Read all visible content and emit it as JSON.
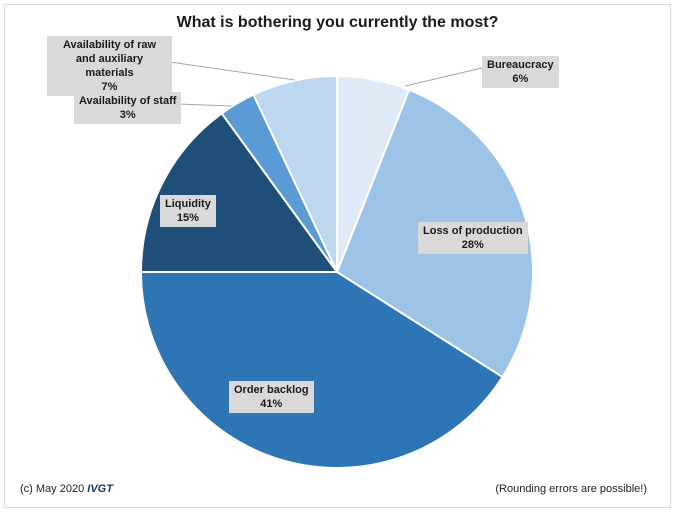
{
  "chart_data": {
    "type": "pie",
    "title": "What is bothering you currently the most?",
    "unit": "%",
    "slices": [
      {
        "label": "Bureaucracy",
        "value": 6,
        "display": "6%",
        "color": "#deebf7"
      },
      {
        "label": "Loss of production",
        "value": 28,
        "display": "28%",
        "color": "#9dc3e6"
      },
      {
        "label": "Order backlog",
        "value": 41,
        "display": "41%",
        "color": "#2e75b6"
      },
      {
        "label": "Liquidity",
        "value": 15,
        "display": "15%",
        "color": "#1f4e79"
      },
      {
        "label": "Availability of staff",
        "value": 3,
        "display": "3%",
        "color": "#5b9bd5"
      },
      {
        "label": "Availability of raw and auxiliary materials",
        "value": 7,
        "display": "7%",
        "color": "#bdd7ee"
      }
    ],
    "start_angle": "top",
    "direction": "clockwise"
  },
  "footer": {
    "copyright": "(c) May 2020",
    "brand": "IVGT",
    "note": "(Rounding errors are possible!)"
  }
}
